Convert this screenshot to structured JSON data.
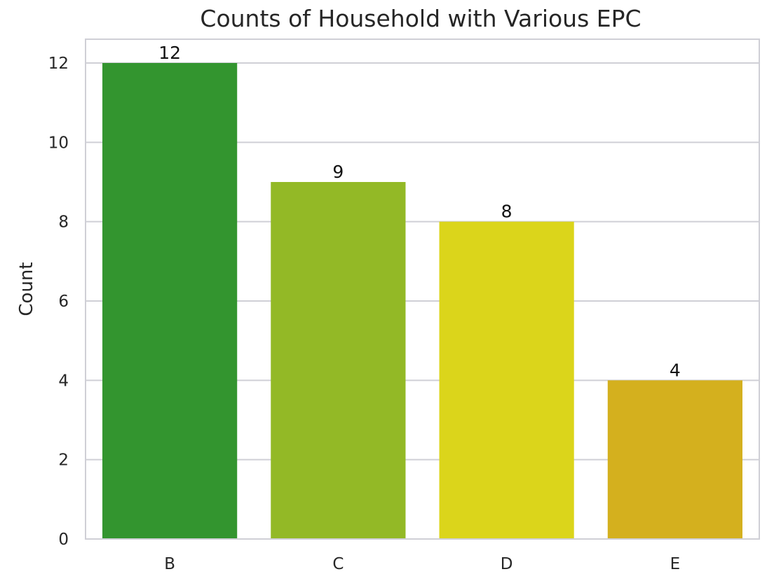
{
  "chart_data": {
    "type": "bar",
    "title": "Counts of Household with Various EPC",
    "xlabel": "",
    "ylabel": "Count",
    "categories": [
      "B",
      "C",
      "D",
      "E"
    ],
    "values": [
      12,
      9,
      8,
      4
    ],
    "data_labels": [
      "12",
      "9",
      "8",
      "4"
    ],
    "bar_colors": [
      "#33952f",
      "#93b926",
      "#dbd51b",
      "#d4b01e"
    ],
    "ylim": [
      0,
      12.6
    ],
    "yticks": [
      0,
      2,
      4,
      6,
      8,
      10,
      12
    ],
    "ytick_labels": [
      "0",
      "2",
      "4",
      "6",
      "8",
      "10",
      "12"
    ],
    "grid": true,
    "grid_axis": "y",
    "grid_color": "#cfcfd6"
  }
}
